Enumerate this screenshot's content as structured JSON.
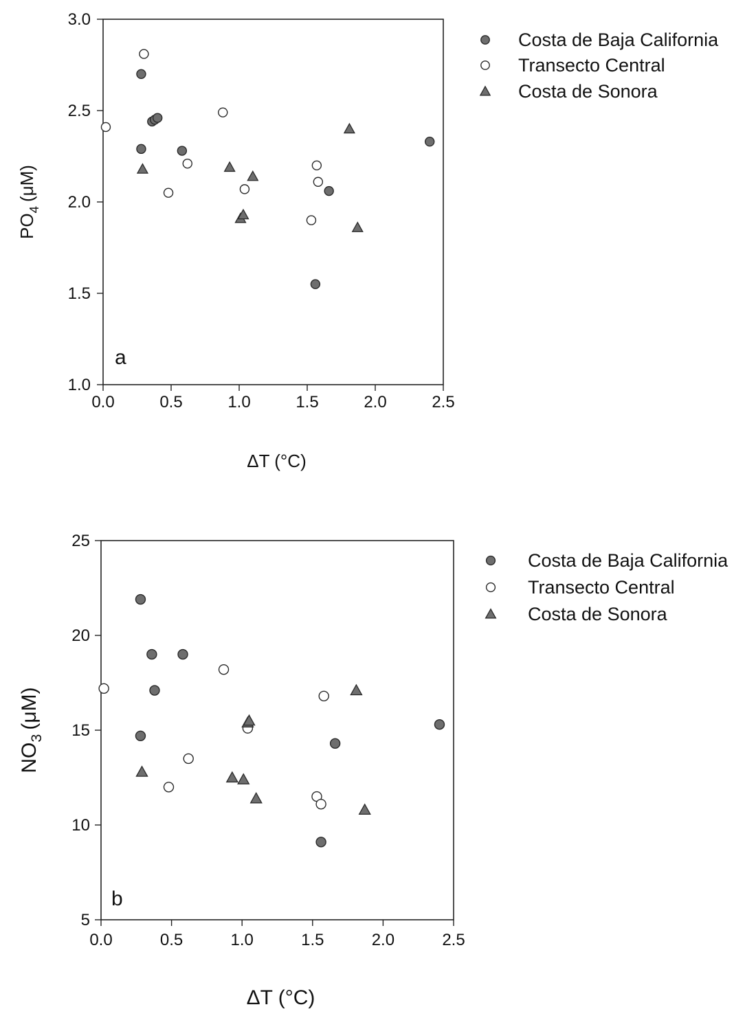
{
  "legend_labels": {
    "baja": "Costa de Baja California",
    "central": "Transecto Central",
    "sonora": "Costa de Sonora"
  },
  "marker_styles": {
    "baja": {
      "shape": "circle",
      "fill": "#6e6e6e",
      "stroke": "#2a2a2a"
    },
    "central": {
      "shape": "circle",
      "fill": "#ffffff",
      "stroke": "#2a2a2a"
    },
    "sonora": {
      "shape": "triangle",
      "fill": "#6e6e6e",
      "stroke": "#2a2a2a"
    }
  },
  "chart_data": [
    {
      "type": "scatter",
      "panel_label": "a",
      "xlabel": "ΔT (°C)",
      "ylabel_main": "PO",
      "ylabel_sub": "4",
      "ylabel_unit": "(μM)",
      "xlim": [
        0,
        2.5
      ],
      "ylim": [
        1.0,
        3.0
      ],
      "x_ticks": [
        "0.0",
        "0.5",
        "1.0",
        "1.5",
        "2.0",
        "2.5"
      ],
      "y_ticks": [
        "1.0",
        "1.5",
        "2.0",
        "2.5",
        "3.0"
      ],
      "legend_position": "right",
      "series": [
        {
          "key": "baja",
          "name": "Costa de Baja California",
          "points": [
            [
              0.28,
              2.7
            ],
            [
              0.28,
              2.29
            ],
            [
              0.36,
              2.44
            ],
            [
              0.38,
              2.45
            ],
            [
              0.4,
              2.46
            ],
            [
              0.58,
              2.28
            ],
            [
              1.56,
              1.55
            ],
            [
              1.66,
              2.06
            ],
            [
              2.4,
              2.33
            ]
          ]
        },
        {
          "key": "central",
          "name": "Transecto Central",
          "points": [
            [
              0.02,
              2.41
            ],
            [
              0.3,
              2.81
            ],
            [
              0.48,
              2.05
            ],
            [
              0.62,
              2.21
            ],
            [
              0.88,
              2.49
            ],
            [
              1.04,
              2.07
            ],
            [
              1.53,
              1.9
            ],
            [
              1.57,
              2.2
            ],
            [
              1.58,
              2.11
            ]
          ]
        },
        {
          "key": "sonora",
          "name": "Costa de Sonora",
          "points": [
            [
              0.29,
              2.18
            ],
            [
              0.93,
              2.19
            ],
            [
              1.01,
              1.91
            ],
            [
              1.03,
              1.93
            ],
            [
              1.1,
              2.14
            ],
            [
              1.81,
              2.4
            ],
            [
              1.87,
              1.86
            ]
          ]
        }
      ]
    },
    {
      "type": "scatter",
      "panel_label": "b",
      "xlabel": "ΔT (°C)",
      "ylabel_main": "NO",
      "ylabel_sub": "3",
      "ylabel_unit": "(μM)",
      "xlim": [
        0,
        2.5
      ],
      "ylim": [
        5,
        25
      ],
      "x_ticks": [
        "0.0",
        "0.5",
        "1.0",
        "1.5",
        "2.0",
        "2.5"
      ],
      "y_ticks": [
        "5",
        "10",
        "15",
        "20",
        "25"
      ],
      "legend_position": "right",
      "series": [
        {
          "key": "baja",
          "name": "Costa de Baja California",
          "points": [
            [
              0.28,
              21.9
            ],
            [
              0.28,
              14.7
            ],
            [
              0.36,
              19.0
            ],
            [
              0.38,
              17.1
            ],
            [
              0.58,
              19.0
            ],
            [
              1.56,
              9.1
            ],
            [
              1.66,
              14.3
            ],
            [
              2.4,
              15.3
            ]
          ]
        },
        {
          "key": "central",
          "name": "Transecto Central",
          "points": [
            [
              0.02,
              17.2
            ],
            [
              0.48,
              12.0
            ],
            [
              0.62,
              13.5
            ],
            [
              0.87,
              18.2
            ],
            [
              1.04,
              15.1
            ],
            [
              1.53,
              11.5
            ],
            [
              1.56,
              11.1
            ],
            [
              1.58,
              16.8
            ]
          ]
        },
        {
          "key": "sonora",
          "name": "Costa de Sonora",
          "points": [
            [
              0.29,
              12.8
            ],
            [
              0.93,
              12.5
            ],
            [
              1.01,
              12.4
            ],
            [
              1.04,
              15.4
            ],
            [
              1.05,
              15.5
            ],
            [
              1.1,
              11.4
            ],
            [
              1.81,
              17.1
            ],
            [
              1.87,
              10.8
            ]
          ]
        }
      ]
    }
  ]
}
